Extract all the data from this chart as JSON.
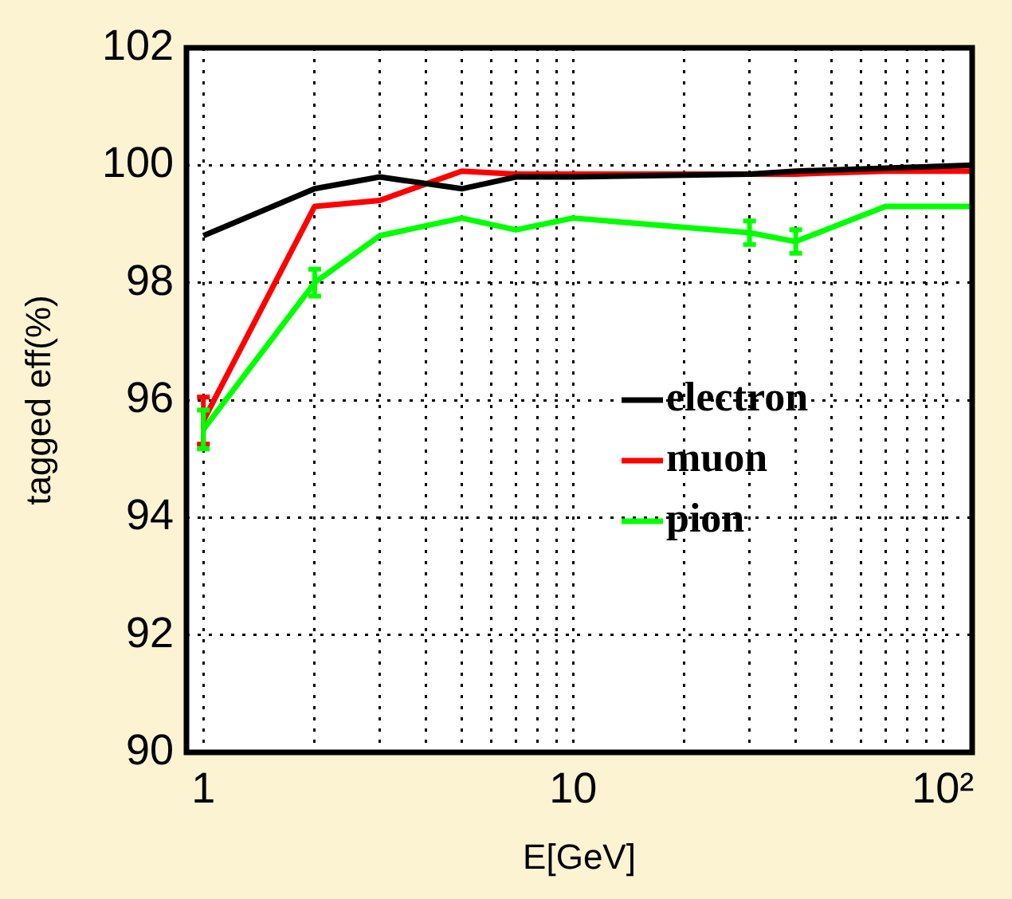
{
  "chart_data": {
    "type": "line",
    "xlabel": "E[GeV]",
    "ylabel": "tagged eff(%)",
    "x": [
      1,
      2,
      3,
      5,
      7,
      10,
      30,
      40,
      70,
      120
    ],
    "xlim": [
      0.9,
      120
    ],
    "ylim": [
      90,
      102
    ],
    "xticks": [
      1,
      {
        "value": 2,
        "label": null
      },
      {
        "value": 3,
        "label": null
      },
      {
        "value": 4,
        "label": null
      },
      {
        "value": 5,
        "label": null
      },
      {
        "value": 6,
        "label": null
      },
      {
        "value": 7,
        "label": null
      },
      {
        "value": 8,
        "label": null
      },
      {
        "value": 9,
        "label": null
      },
      10,
      {
        "value": 20,
        "label": null
      },
      {
        "value": 30,
        "label": null
      },
      {
        "value": 40,
        "label": null
      },
      {
        "value": 50,
        "label": null
      },
      {
        "value": 60,
        "label": null
      },
      {
        "value": 70,
        "label": null
      },
      {
        "value": 80,
        "label": null
      },
      {
        "value": 90,
        "label": null
      },
      {
        "value": 100,
        "label": "10²"
      }
    ],
    "yticks": [
      90,
      92,
      94,
      96,
      98,
      100,
      102
    ],
    "log": "x",
    "grid": true,
    "legend": "right",
    "marker": "none",
    "line_style": "solid",
    "series": [
      {
        "name": "electron",
        "color": "#000000",
        "values": [
          98.8,
          99.6,
          99.8,
          99.6,
          99.8,
          99.8,
          99.85,
          99.9,
          99.95,
          100
        ]
      },
      {
        "name": "muon",
        "color": "#ff0000",
        "values": [
          95.65,
          99.3,
          99.4,
          99.9,
          99.85,
          99.85,
          99.85,
          99.85,
          99.9,
          99.9
        ],
        "errors": [
          0.4,
          null,
          null,
          null,
          null,
          null,
          null,
          null,
          null,
          null
        ]
      },
      {
        "name": "pion",
        "color": "#00ff00",
        "values": [
          95.5,
          98.0,
          98.8,
          99.1,
          98.9,
          99.1,
          98.85,
          98.7,
          99.3,
          99.3
        ],
        "errors": [
          0.33,
          0.23,
          null,
          null,
          null,
          null,
          0.2,
          0.2,
          null,
          null
        ]
      }
    ]
  }
}
